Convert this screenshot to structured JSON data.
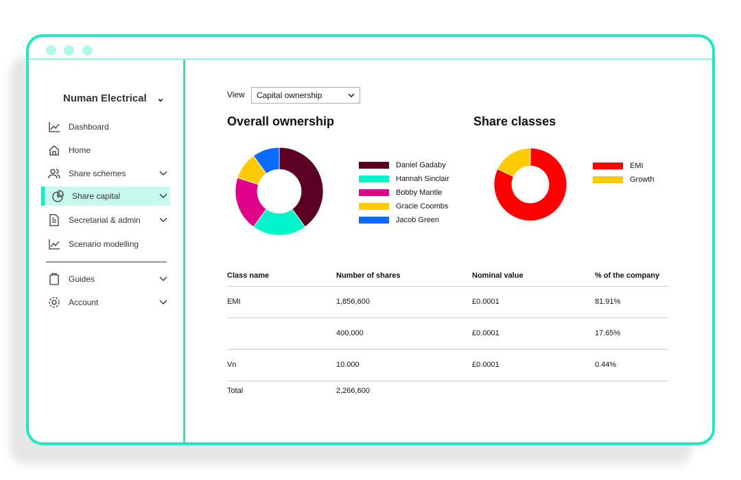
{
  "window": {
    "accent": "#1de9c2"
  },
  "sidebar": {
    "company": "Numan Electrical",
    "items": [
      {
        "label": "Dashboard",
        "icon": "chart-line-icon",
        "chevron": false
      },
      {
        "label": "Home",
        "icon": "home-icon",
        "chevron": false
      },
      {
        "label": "Share schemes",
        "icon": "users-icon",
        "chevron": true
      },
      {
        "label": "Share capital",
        "icon": "pie-chart-icon",
        "chevron": true,
        "active": true
      },
      {
        "label": "Secretarial & admin",
        "icon": "document-icon",
        "chevron": true
      },
      {
        "label": "Scenario modelling",
        "icon": "chart-line-icon",
        "chevron": false
      },
      {
        "label": "Guides",
        "icon": "clipboard-icon",
        "chevron": true
      },
      {
        "label": "Account",
        "icon": "gear-icon",
        "chevron": true
      }
    ]
  },
  "main": {
    "view_label": "View",
    "view_value": "Capital ownership"
  },
  "chart_data": [
    {
      "type": "pie",
      "title": "Overall ownership",
      "donut": true,
      "categories": [
        "Daniel Gadaby",
        "Hannah Sinclair",
        "Bobby Mantle",
        "Gracie Coombs",
        "Jacob Green"
      ],
      "values": [
        40,
        20,
        20,
        10,
        10
      ],
      "colors": [
        "#5a0022",
        "#00f5c8",
        "#e0008a",
        "#ffcc00",
        "#0a6bff"
      ],
      "legend": "right"
    },
    {
      "type": "pie",
      "title": "Share classes",
      "donut": true,
      "categories": [
        "EMI",
        "Growth"
      ],
      "values": [
        82,
        18
      ],
      "colors": [
        "#ff0000",
        "#ffcc00"
      ],
      "legend": "right"
    }
  ],
  "table": {
    "headers": [
      "Class name",
      "Number of shares",
      "Nominal value",
      "% of the company"
    ],
    "rows": [
      [
        "EMI",
        "1,856,600",
        "£0.0001",
        "81.91%"
      ],
      [
        "",
        "400,000",
        "£0.0001",
        "17.65%"
      ],
      [
        "Vn",
        "10.000",
        "£0.0001",
        "0.44%"
      ]
    ],
    "total": [
      "Total",
      "2,266,600",
      "",
      ""
    ]
  }
}
